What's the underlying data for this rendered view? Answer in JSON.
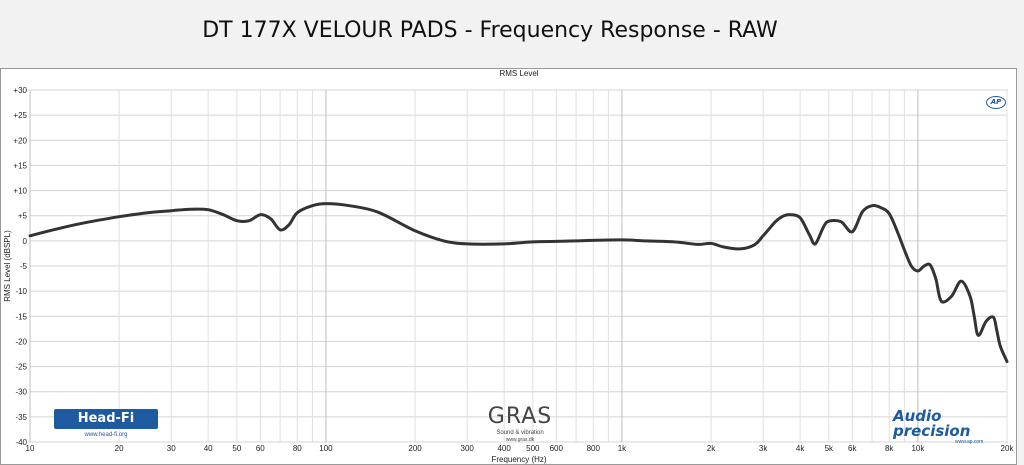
{
  "page_title": "DT 177X VELOUR PADS - Frequency Response - RAW",
  "chart_data": {
    "type": "line",
    "title": "RMS Level",
    "xlabel": "Frequency (Hz)",
    "ylabel": "RMS Level (dBSPL)",
    "x_scale": "log",
    "xlim": [
      10,
      20000
    ],
    "ylim": [
      -40,
      30
    ],
    "grid": true,
    "line_color": "#333333",
    "y_ticks": [
      "+30",
      "+25",
      "+20",
      "+15",
      "+10",
      "+5",
      "0",
      "-5",
      "-10",
      "-15",
      "-20",
      "-25",
      "-30",
      "-35",
      "-40"
    ],
    "y_tick_values": [
      30,
      25,
      20,
      15,
      10,
      5,
      0,
      -5,
      -10,
      -15,
      -20,
      -25,
      -30,
      -35,
      -40
    ],
    "x_tick_labels": [
      "10",
      "20",
      "30",
      "40",
      "50",
      "60",
      "80",
      "100",
      "200",
      "300",
      "400",
      "500",
      "600",
      "800",
      "1k",
      "2k",
      "3k",
      "4k",
      "5k",
      "6k",
      "8k",
      "10k",
      "20k"
    ],
    "x_tick_values": [
      10,
      20,
      30,
      40,
      50,
      60,
      80,
      100,
      200,
      300,
      400,
      500,
      600,
      800,
      1000,
      2000,
      3000,
      4000,
      5000,
      6000,
      8000,
      10000,
      20000
    ],
    "series": [
      {
        "x": [
          10,
          12,
          15,
          20,
          25,
          30,
          35,
          40,
          45,
          50,
          55,
          60,
          65,
          70,
          75,
          80,
          90,
          100,
          120,
          150,
          200,
          250,
          300,
          400,
          500,
          600,
          700,
          800,
          1000,
          1200,
          1500,
          1800,
          2000,
          2200,
          2500,
          2800,
          3000,
          3300,
          3500,
          3700,
          4000,
          4300,
          4500,
          4800,
          5000,
          5500,
          6000,
          6500,
          7000,
          7500,
          8000,
          8500,
          9000,
          9500,
          10000,
          10500,
          11000,
          11500,
          12000,
          13000,
          14000,
          15000,
          15500,
          16000,
          17000,
          18000,
          18500,
          19000,
          20000
        ],
        "y": [
          1.0,
          2.2,
          3.5,
          4.8,
          5.6,
          6.0,
          6.3,
          6.2,
          5.2,
          4.0,
          4.0,
          5.2,
          4.4,
          2.2,
          3.2,
          5.6,
          7.0,
          7.4,
          7.0,
          5.7,
          2.0,
          0.0,
          -0.6,
          -0.6,
          -0.2,
          -0.1,
          0.0,
          0.1,
          0.2,
          0.0,
          -0.2,
          -0.7,
          -0.5,
          -1.2,
          -1.6,
          -0.8,
          1.0,
          3.8,
          4.9,
          5.2,
          4.6,
          1.2,
          -0.6,
          2.8,
          3.9,
          3.8,
          1.8,
          5.8,
          7.0,
          6.6,
          5.4,
          2.0,
          -1.8,
          -5.0,
          -6.0,
          -5.0,
          -4.8,
          -7.6,
          -12.0,
          -11.0,
          -8.0,
          -11.0,
          -15.0,
          -18.8,
          -16.0,
          -15.2,
          -18.0,
          -21.0,
          -24.0
        ]
      }
    ]
  },
  "logos": {
    "headfi": "Head-Fi",
    "headfi_url": "www.head-fi.org",
    "gras": "GRAS",
    "gras_sub": "Sound & vibration",
    "gras_url": "www.gras.dk",
    "ap_line1": "Audio",
    "ap_line2": "precision",
    "ap_url": "www.ap.com",
    "ap_badge": "AP"
  }
}
